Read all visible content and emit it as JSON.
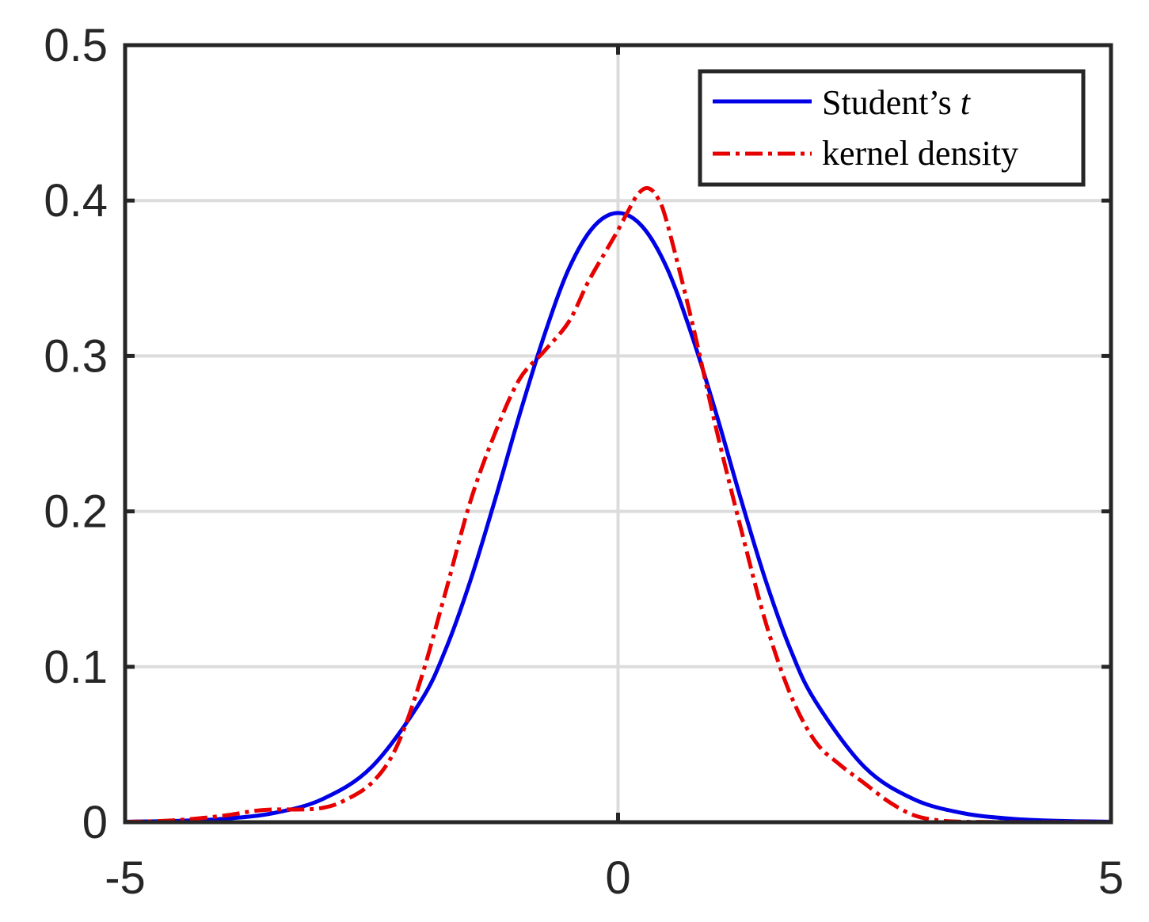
{
  "chart_data": {
    "type": "line",
    "title": "",
    "xlabel": "",
    "ylabel": "",
    "xlim": [
      -5,
      5
    ],
    "ylim": [
      0,
      0.5
    ],
    "x_ticks": [
      -5,
      0,
      5
    ],
    "x_tick_labels": [
      "-5",
      "0",
      "5"
    ],
    "y_ticks": [
      0,
      0.1,
      0.2,
      0.3,
      0.4,
      0.5
    ],
    "y_tick_labels": [
      "0",
      "0.1",
      "0.2",
      "0.3",
      "0.4",
      "0.5"
    ],
    "grid": true,
    "legend_position": "top-right",
    "legend": {
      "student_prefix": "Student’s ",
      "student_var": "t",
      "kernel": "kernel density"
    },
    "series": [
      {
        "key": "student",
        "name": "Student’s t",
        "color": "#0000e6",
        "style": "solid",
        "x": [
          -5,
          -4.5,
          -4,
          -3.5,
          -3,
          -2.5,
          -2,
          -1.75,
          -1.5,
          -1.25,
          -1,
          -0.75,
          -0.5,
          -0.25,
          0,
          0.25,
          0.5,
          0.75,
          1,
          1.25,
          1.5,
          1.75,
          2,
          2.5,
          3,
          3.5,
          4,
          4.5,
          5
        ],
        "y": [
          0.0003,
          0.0008,
          0.0022,
          0.0058,
          0.0148,
          0.0355,
          0.078,
          0.111,
          0.155,
          0.207,
          0.262,
          0.313,
          0.356,
          0.383,
          0.392,
          0.383,
          0.356,
          0.313,
          0.262,
          0.207,
          0.155,
          0.111,
          0.078,
          0.0355,
          0.0148,
          0.0058,
          0.0022,
          0.0008,
          0.0003
        ]
      },
      {
        "key": "kernel",
        "name": "kernel density",
        "color": "#e60000",
        "style": "dashdot",
        "x": [
          -5,
          -4.5,
          -4,
          -3.7,
          -3.5,
          -3.2,
          -3,
          -2.8,
          -2.5,
          -2.25,
          -2,
          -1.75,
          -1.5,
          -1.25,
          -1,
          -0.75,
          -0.5,
          -0.3,
          -0.1,
          0,
          0.1,
          0.2,
          0.3,
          0.4,
          0.5,
          0.75,
          1,
          1.25,
          1.5,
          1.75,
          2,
          2.25,
          2.5,
          2.75,
          3,
          3.25,
          3.5,
          4,
          4.5,
          5
        ],
        "y": [
          0.0002,
          0.0012,
          0.0042,
          0.0072,
          0.0082,
          0.0082,
          0.0092,
          0.0132,
          0.0252,
          0.048,
          0.092,
          0.148,
          0.206,
          0.25,
          0.285,
          0.303,
          0.322,
          0.348,
          0.37,
          0.381,
          0.393,
          0.404,
          0.408,
          0.402,
          0.385,
          0.322,
          0.252,
          0.188,
          0.128,
          0.082,
          0.052,
          0.037,
          0.025,
          0.013,
          0.0045,
          0.0012,
          0.0003,
          0.0001,
          0.0001,
          0.0001
        ]
      }
    ]
  }
}
